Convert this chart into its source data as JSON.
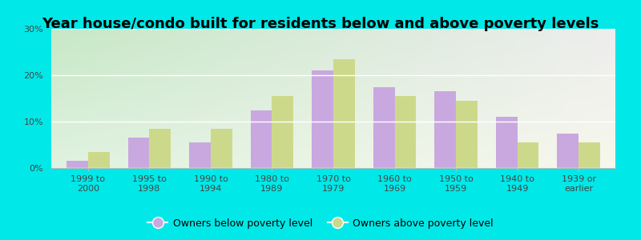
{
  "title": "Year house/condo built for residents below and above poverty levels",
  "categories": [
    "1999 to\n2000",
    "1995 to\n1998",
    "1990 to\n1994",
    "1980 to\n1989",
    "1970 to\n1979",
    "1960 to\n1969",
    "1950 to\n1959",
    "1940 to\n1949",
    "1939 or\nearlier"
  ],
  "below_poverty": [
    1.5,
    6.5,
    5.5,
    12.5,
    21.0,
    17.5,
    16.5,
    11.0,
    7.5
  ],
  "above_poverty": [
    3.5,
    8.5,
    8.5,
    15.5,
    23.5,
    15.5,
    14.5,
    5.5,
    5.5
  ],
  "below_color": "#c9a8e0",
  "above_color": "#cdd98a",
  "bg_color": "#00e8e8",
  "plot_bg_topleft": "#c8e8c8",
  "plot_bg_topright": "#e8e8e8",
  "plot_bg_bottomleft": "#e0f0e0",
  "plot_bg_bottomright": "#f8f8f0",
  "ylim": [
    0,
    30
  ],
  "yticks": [
    0,
    10,
    20,
    30
  ],
  "legend_below": "Owners below poverty level",
  "legend_above": "Owners above poverty level",
  "title_fontsize": 13,
  "tick_fontsize": 8,
  "legend_fontsize": 9,
  "bar_width": 0.35
}
